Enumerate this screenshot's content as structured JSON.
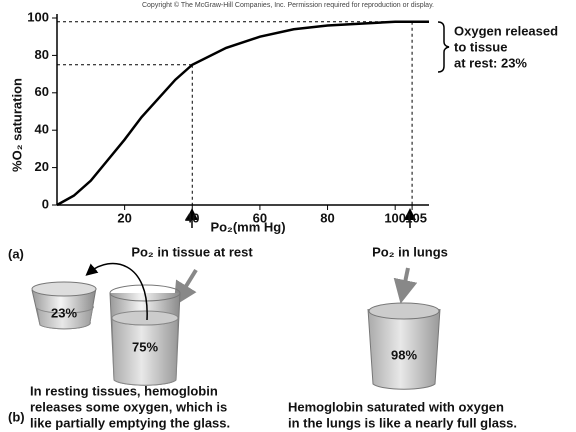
{
  "copyright": "Copyright © The McGraw-Hill Companies, Inc. Permission required for reproduction or display.",
  "chart_data": {
    "type": "line",
    "y_label": "%O₂ saturation",
    "x_label": "Po₂(mm Hg)",
    "x": [
      0,
      5,
      10,
      15,
      20,
      25,
      30,
      35,
      40,
      50,
      60,
      70,
      80,
      90,
      100,
      105,
      110
    ],
    "series": [
      {
        "color": "#000000",
        "values": [
          0,
          5,
          13,
          24,
          35,
          47,
          57,
          67,
          75,
          84,
          90,
          94,
          96,
          97,
          98,
          98,
          98
        ]
      }
    ],
    "xlim": [
      0,
      110
    ],
    "ylim": [
      0,
      100
    ],
    "xticks": [
      20,
      40,
      60,
      80,
      100,
      105
    ],
    "yticks": [
      0,
      20,
      40,
      60,
      80,
      100
    ],
    "markers": [
      {
        "x": 40,
        "y": 75
      },
      {
        "x": 105,
        "y": 98
      }
    ],
    "annotation": [
      "Oxygen released",
      "to tissue",
      "at rest: 23%"
    ],
    "panel_label": "(a)",
    "pointer_labels": [
      "Po₂ in tissue at rest",
      "Po₂ in lungs"
    ]
  },
  "panel_b": {
    "panel_label": "(b)",
    "glasses": [
      "23%",
      "75%",
      "98%"
    ],
    "captions": [
      [
        "In resting tissues, hemoglobin",
        "releases some oxygen, which is",
        "like partially emptying the glass."
      ],
      [
        "Hemoglobin saturated with oxygen",
        "in the lungs is like a nearly full glass."
      ]
    ]
  }
}
